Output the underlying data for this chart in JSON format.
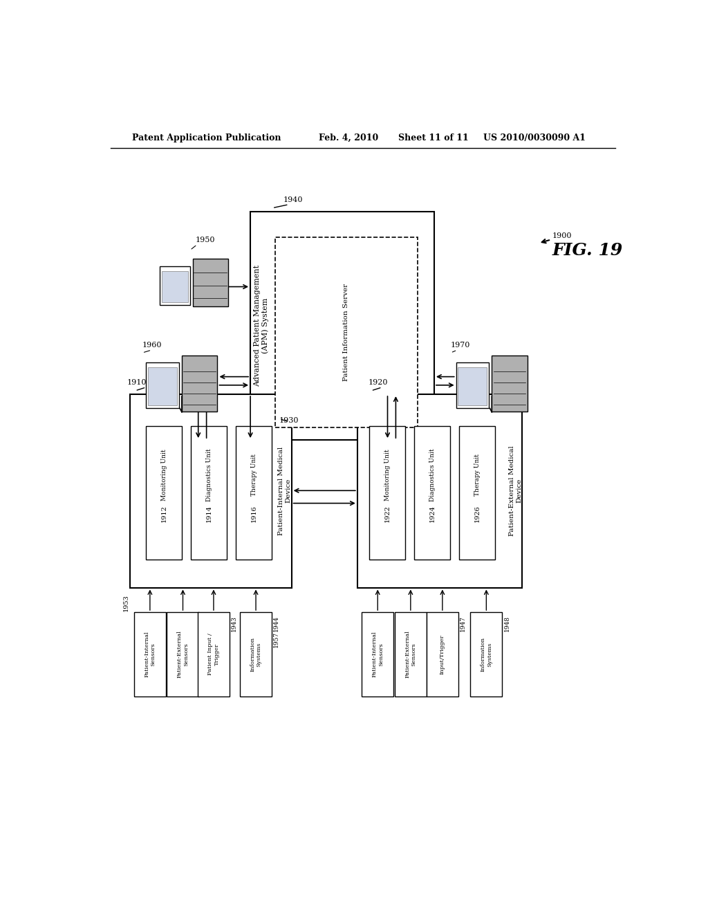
{
  "bg_color": "#ffffff",
  "header_text": "Patent Application Publication",
  "header_date": "Feb. 4, 2010",
  "header_sheet": "Sheet 11 of 11",
  "header_patent": "US 2010/0030090 A1",
  "fig_label": "FIG. 19",
  "fig_number": "1900"
}
